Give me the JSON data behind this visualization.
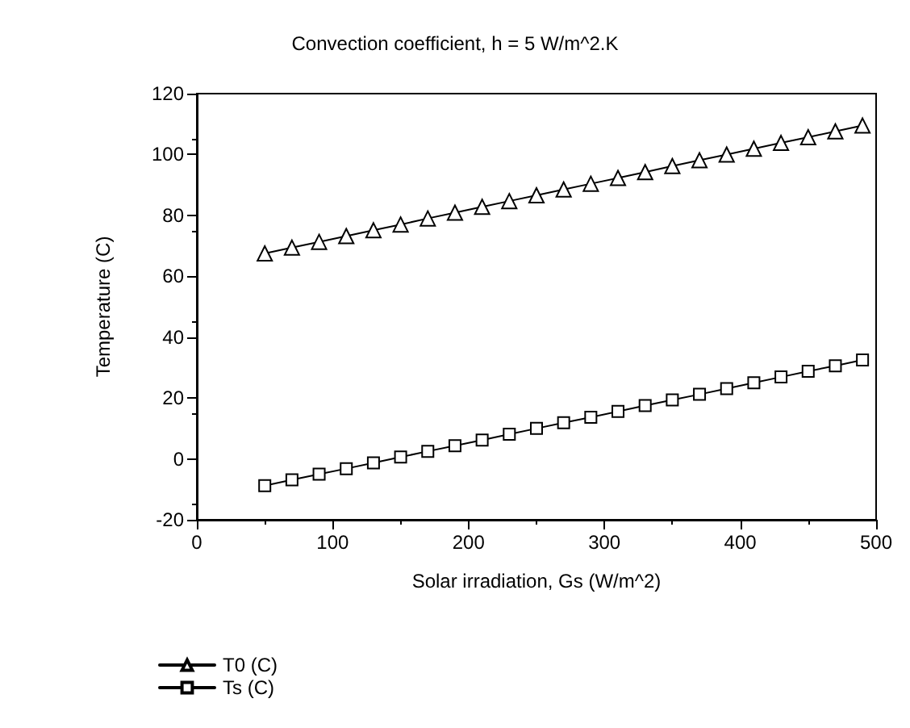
{
  "chart_data": {
    "type": "line",
    "title": "Convection coefficient, h = 5 W/m^2.K",
    "xlabel": "Solar irradiation, Gs (W/m^2)",
    "ylabel": "Temperature (C)",
    "x": [
      50,
      70,
      90,
      110,
      130,
      150,
      170,
      190,
      210,
      230,
      250,
      270,
      290,
      310,
      330,
      350,
      370,
      390,
      410,
      430,
      450,
      470,
      490
    ],
    "series": [
      {
        "name": "T0 (C)",
        "color": "#000000",
        "marker": "triangle",
        "values": [
          67.5,
          69.4,
          71.3,
          73.2,
          75.1,
          77.0,
          79.0,
          80.9,
          82.8,
          84.7,
          86.6,
          88.5,
          90.4,
          92.3,
          94.2,
          96.2,
          98.1,
          100.0,
          101.9,
          103.8,
          105.7,
          107.6,
          109.5
        ]
      },
      {
        "name": "Ts (C)",
        "color": "#000000",
        "marker": "square",
        "values": [
          -8.8,
          -6.9,
          -5.0,
          -3.2,
          -1.3,
          0.6,
          2.5,
          4.3,
          6.2,
          8.1,
          10.0,
          11.9,
          13.7,
          15.6,
          17.5,
          19.4,
          21.2,
          23.1,
          25.0,
          26.9,
          28.8,
          30.6,
          32.5
        ]
      }
    ],
    "xlim": [
      0,
      500
    ],
    "xticks": [
      0,
      100,
      200,
      300,
      400,
      500
    ],
    "ylim": [
      -20,
      120
    ],
    "yticks": [
      -20,
      0,
      20,
      40,
      60,
      80,
      100,
      120
    ],
    "grid": false,
    "legend": "bottom left",
    "line_style": "solid"
  }
}
